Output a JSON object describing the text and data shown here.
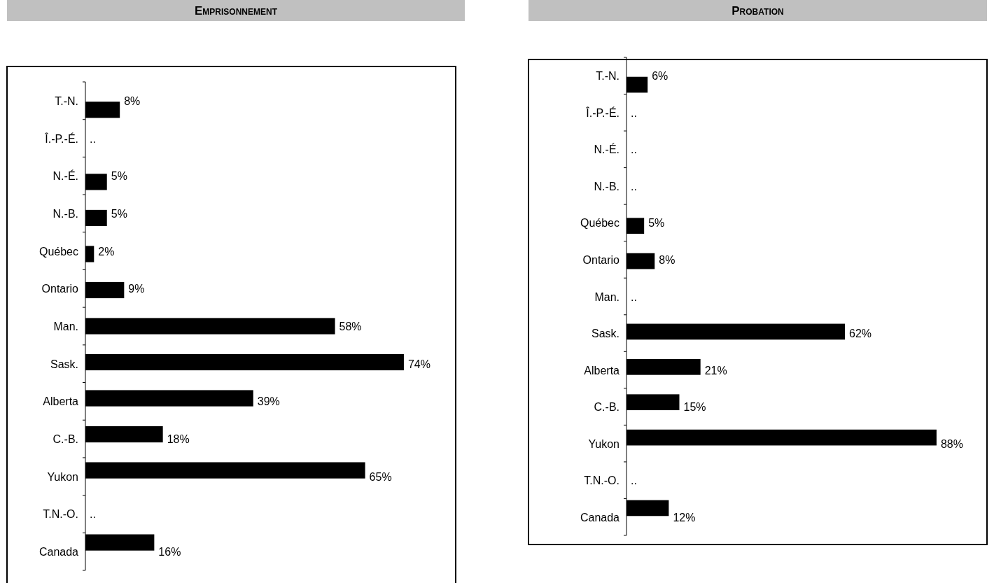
{
  "chart_data": [
    {
      "type": "bar",
      "orientation": "horizontal",
      "title": "Emprisonnement",
      "categories": [
        "T.-N.",
        "Î.-P.-É.",
        "N.-É.",
        "N.-B.",
        "Québec",
        "Ontario",
        "Man.",
        "Sask.",
        "Alberta",
        "C.-B.",
        "Yukon",
        "T.N.-O.",
        "Canada"
      ],
      "values": [
        8,
        null,
        5,
        5,
        2,
        9,
        58,
        74,
        39,
        18,
        65,
        null,
        16
      ],
      "value_labels": [
        "8%",
        "..",
        "5%",
        "5%",
        "2%",
        "9%",
        "58%",
        "74%",
        "39%",
        "18%",
        "65%",
        "..",
        "16%"
      ],
      "color": "#000000"
    },
    {
      "type": "bar",
      "orientation": "horizontal",
      "title": "Probation",
      "categories": [
        "T.-N.",
        "Î.-P.-É.",
        "N.-É.",
        "N.-B.",
        "Québec",
        "Ontario",
        "Man.",
        "Sask.",
        "Alberta",
        "C.-B.",
        "Yukon",
        "T.N.-O.",
        "Canada"
      ],
      "values": [
        6,
        null,
        null,
        null,
        5,
        8,
        null,
        62,
        21,
        15,
        88,
        null,
        12
      ],
      "value_labels": [
        "6%",
        "..",
        "..",
        "..",
        "5%",
        "8%",
        "..",
        "62%",
        "21%",
        "15%",
        "88%",
        "..",
        "12%"
      ],
      "color": "#000000"
    }
  ]
}
